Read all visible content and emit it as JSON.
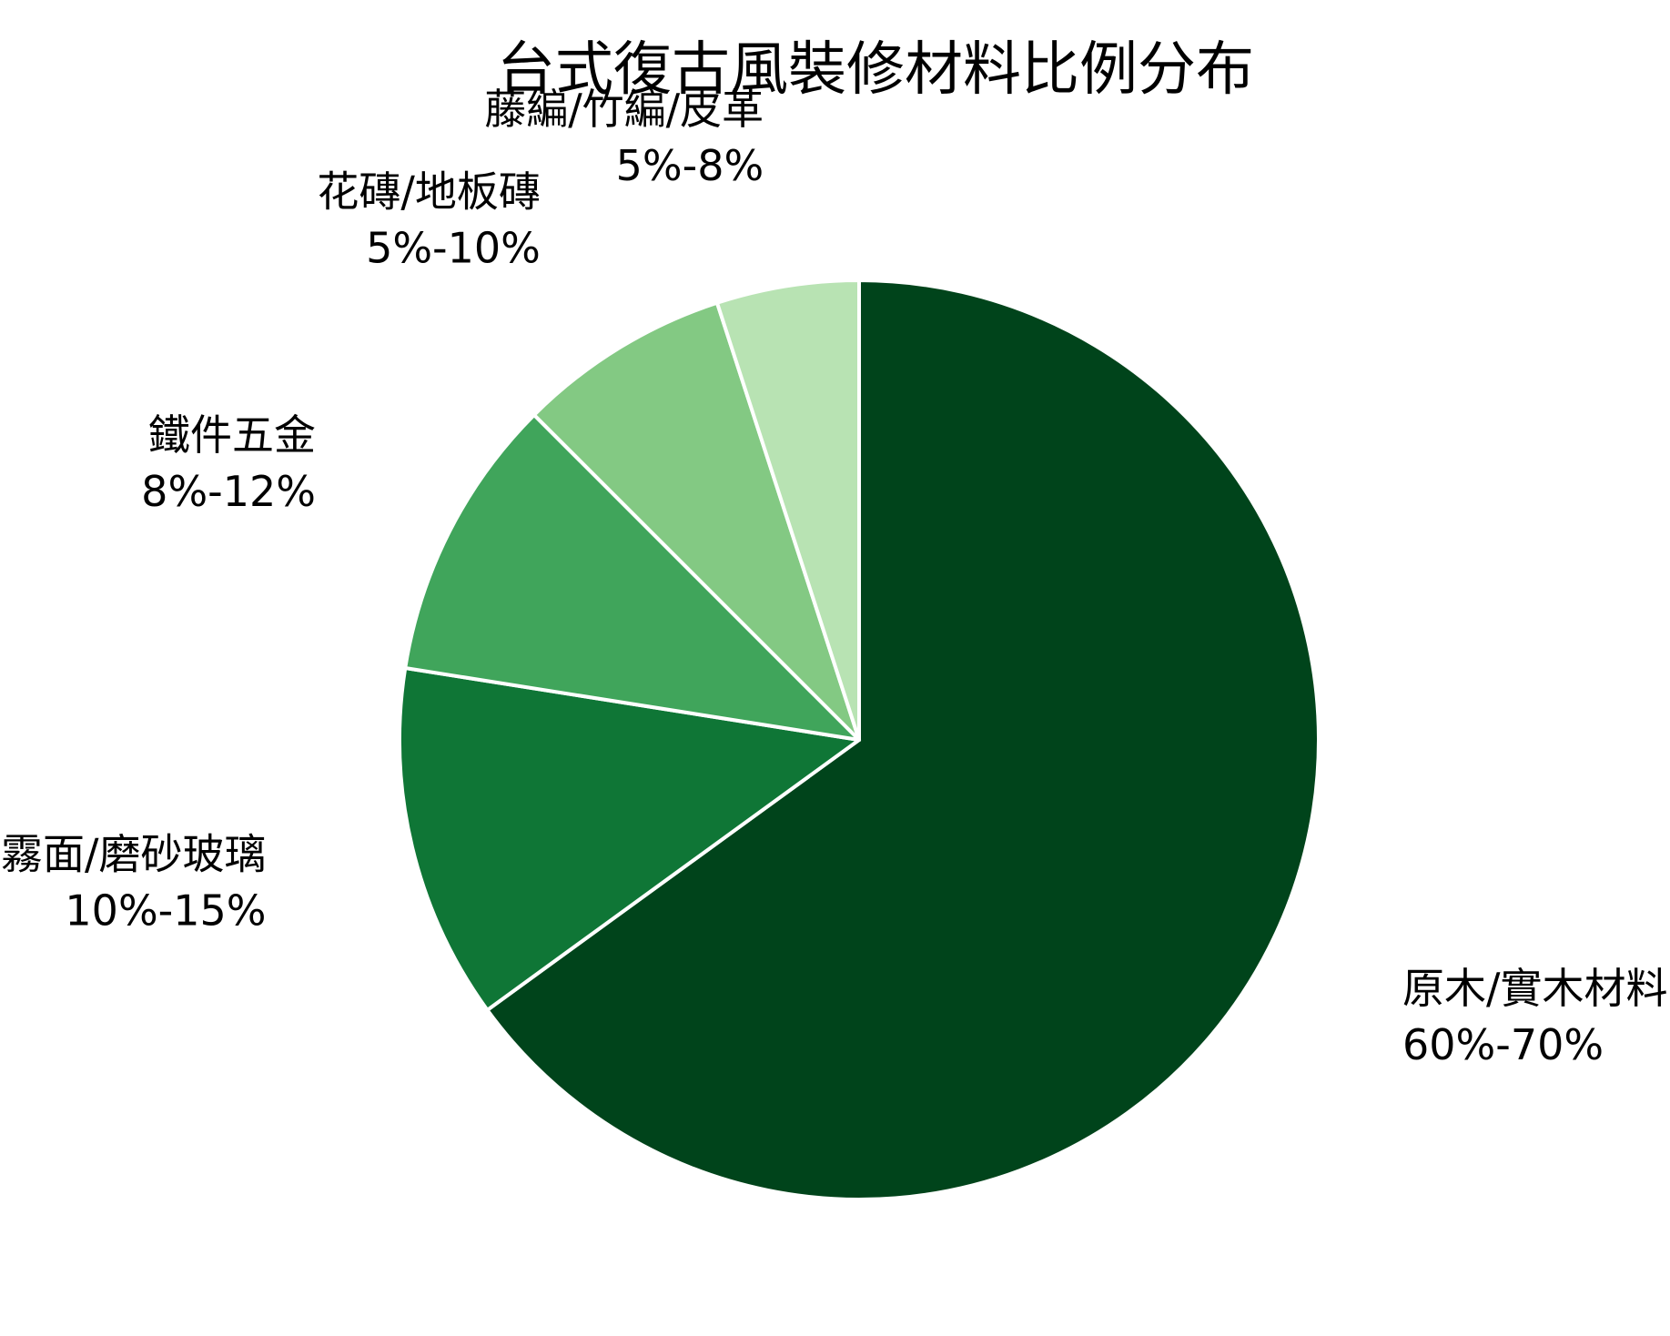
{
  "chart_data": {
    "type": "pie",
    "title": "台式復古風裝修材料比例分布",
    "start_angle_deg": 90,
    "direction": "clockwise",
    "legend": "none",
    "slices": [
      {
        "name": "原木/實木材料",
        "range": "60%-70%",
        "value": 65.0,
        "color": "#00441b"
      },
      {
        "name": "霧面/磨砂玻璃",
        "range": "10%-15%",
        "value": 12.5,
        "color": "#0f7636"
      },
      {
        "name": "鐵件五金",
        "range": "8%-12%",
        "value": 10.0,
        "color": "#40a55b"
      },
      {
        "name": "花磚/地板磚",
        "range": "5%-10%",
        "value": 7.5,
        "color": "#83c983"
      },
      {
        "name": "藤編/竹編/皮革",
        "range": "5%-8%",
        "value": 5.0,
        "color": "#b8e3b3"
      }
    ]
  }
}
